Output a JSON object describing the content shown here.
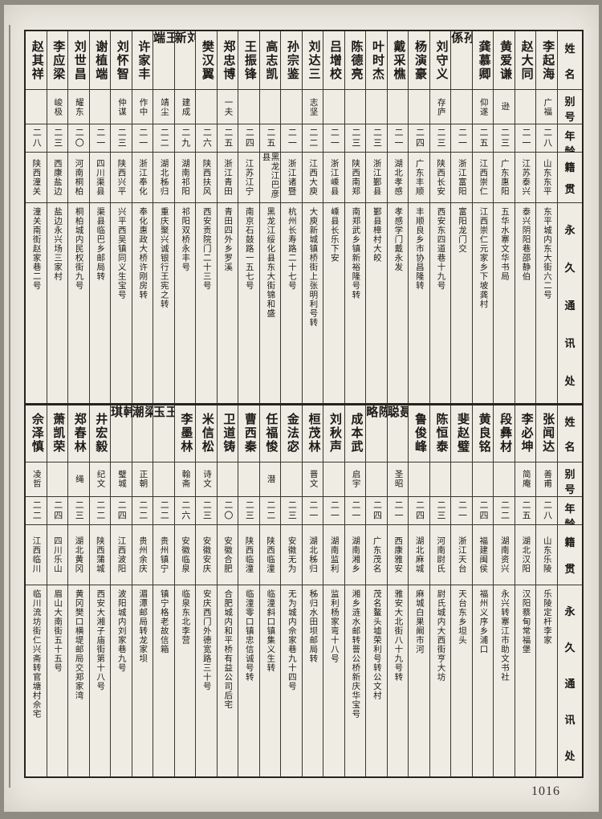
{
  "page": {
    "number": "1016"
  },
  "headers": {
    "name": "姓名",
    "alias": "别号",
    "age": "年龄",
    "native": "籍贯",
    "address": "永久通讯处"
  },
  "tables": [
    {
      "people": [
        {
          "name": "李起海",
          "alias": "广福",
          "age": "二八",
          "native": "山东东平",
          "address": "东平城内东大街六二号"
        },
        {
          "name": "赵大同",
          "alias": "",
          "age": "二一",
          "native": "江苏泰兴",
          "address": "泰兴阴阳巷邵静伯"
        },
        {
          "name": "黄爱谦",
          "alias": "逊",
          "age": "二三",
          "native": "广东惠阳",
          "address": "五华水寨文华书局"
        },
        {
          "name": "龚慕卿",
          "alias": "仰遂",
          "age": "二五",
          "native": "江西崇仁",
          "address": "江西崇仁元家乡下坡龚村"
        },
        {
          "name": "孙係",
          "alias": "",
          "age": "二一",
          "native": "浙江富阳",
          "address": "富阳龙门交"
        },
        {
          "name": "刘守义",
          "alias": "存庐",
          "age": "二三",
          "native": "陕西长安",
          "address": "西安东四道巷十九号"
        },
        {
          "name": "杨演豪",
          "alias": "",
          "age": "二四",
          "native": "广东丰顺",
          "address": "丰顺良乡市协昌隆转"
        },
        {
          "name": "戴采樵",
          "alias": "",
          "age": "二一",
          "native": "湖北孝感",
          "address": "孝感学门戴永发"
        },
        {
          "name": "叶时杰",
          "alias": "",
          "age": "二三",
          "native": "浙江鄞县",
          "address": "鄞县樟村大皎"
        },
        {
          "name": "陈德亮",
          "alias": "",
          "age": "二三",
          "native": "陕西南郑",
          "address": "南郑武乡镇新裕隆号转"
        },
        {
          "name": "吕增校",
          "alias": "",
          "age": "二一",
          "native": "浙江嵊县",
          "address": "嵊县长乐下安"
        },
        {
          "name": "刘达三",
          "alias": "志坚",
          "age": "二二",
          "native": "江西大庾",
          "address": "大庾新城镇桥街上张明利号转"
        },
        {
          "name": "孙宗鉴",
          "alias": "",
          "age": "二一",
          "native": "浙江诸暨",
          "address": "杭州长寿路二十七号"
        },
        {
          "name": "高志凯",
          "alias": "",
          "age": "二五",
          "native": "黑龙江巴彦县",
          "address": "黑龙江绥化县东大街锦和盛"
        },
        {
          "name": "王振锋",
          "alias": "",
          "age": "二四",
          "native": "江苏江宁",
          "address": "南京石鼓路一五七号"
        },
        {
          "name": "郑忠博",
          "alias": "一夫",
          "age": "二五",
          "native": "浙江青田",
          "address": "青田四外乡罗溪"
        },
        {
          "name": "樊汉翼",
          "alias": "",
          "age": "二六",
          "native": "陕西扶风",
          "address": "西安贡院门二十三号"
        },
        {
          "name": "刘新",
          "alias": "建成",
          "age": "二九",
          "native": "湖南祁阳",
          "address": "祁阳双桥永丰号"
        },
        {
          "name": "王端",
          "alias": "靖尘",
          "age": "二二",
          "native": "湖北秭归",
          "address": "重庆聚兴诚银行王宪之转"
        },
        {
          "name": "许家丰",
          "alias": "作中",
          "age": "二一",
          "native": "浙江奉化",
          "address": "奉化惠政大桥许刚房转"
        },
        {
          "name": "刘怀智",
          "alias": "仲谋",
          "age": "二三",
          "native": "陕西兴平",
          "address": "兴平西吴镇同义生宝号"
        },
        {
          "name": "谢植端",
          "alias": "",
          "age": "二一",
          "native": "四川渠县",
          "address": "渠县临巴乡邮局转"
        },
        {
          "name": "刘世昌",
          "alias": "耀东",
          "age": "二〇",
          "native": "河南桐柏",
          "address": "桐柏城内民权街九号"
        },
        {
          "name": "李应梁",
          "alias": "峻极",
          "age": "二三",
          "native": "西康盐边",
          "address": "盐边永兴场三家村"
        },
        {
          "name": "赵其祥",
          "alias": "",
          "age": "二八",
          "native": "陕西潼关",
          "address": "潼关南街赵家巷二号"
        }
      ]
    },
    {
      "people": [
        {
          "name": "张闻达",
          "alias": "善甫",
          "age": "二八",
          "native": "山东乐陵",
          "address": "乐陵定杆李家"
        },
        {
          "name": "李必坤",
          "alias": "简庵",
          "age": "二五",
          "native": "湖北汉阳",
          "address": "汉阳蔡甸常福堡"
        },
        {
          "name": "段彝材",
          "alias": "",
          "age": "二二",
          "native": "湖南资兴",
          "address": "永兴转寨江市助文书社"
        },
        {
          "name": "黄良铭",
          "alias": "",
          "age": "二四",
          "native": "福建闽侯",
          "address": "福州义序乡浦口"
        },
        {
          "name": "斐赵璧",
          "alias": "",
          "age": "二一",
          "native": "浙江天台",
          "address": "天台东乡坦头"
        },
        {
          "name": "陈恒泰",
          "alias": "",
          "age": "二三",
          "native": "河南尉氏",
          "address": "尉氏城内大西街亨大坊"
        },
        {
          "name": "鲁俊峰",
          "alias": "",
          "age": "二四",
          "native": "湖北麻城",
          "address": "麻城白果阚市河"
        },
        {
          "name": "聂聪",
          "alias": "圣昭",
          "age": "二一",
          "native": "西康雅安",
          "address": "雅安大北街八十九号转"
        },
        {
          "name": "陈略",
          "alias": "",
          "age": "二四",
          "native": "广东茂名",
          "address": "茂名鳌头墟荣利号转公文村"
        },
        {
          "name": "成本武",
          "alias": "启宇",
          "age": "二一",
          "native": "湖南湘乡",
          "address": "湘乡涟水邮转罾公桥新庆华宝号"
        },
        {
          "name": "刘秋声",
          "alias": "",
          "age": "二一",
          "native": "湖南监利",
          "address": "监利杨家弯十八号"
        },
        {
          "name": "桓茂林",
          "alias": "晋文",
          "age": "二一",
          "native": "湖北秭归",
          "address": "秭归水田坝邮局转"
        },
        {
          "name": "金法宓",
          "alias": "",
          "age": "二三",
          "native": "安徽无为",
          "address": "无为城内佘家巷九十四号"
        },
        {
          "name": "任福悛",
          "alias": "潜",
          "age": "二二",
          "native": "陕西临潼",
          "address": "临潼斜口镇集义生转"
        },
        {
          "name": "曹西秦",
          "alias": "",
          "age": "二三",
          "native": "陕西临潼",
          "address": "临潼零口镇忠信诚号转"
        },
        {
          "name": "卫道铸",
          "alias": "",
          "age": "二〇",
          "native": "安徽合肥",
          "address": "合肥城内和平桥有益公司后宅"
        },
        {
          "name": "米信松",
          "alias": "诗文",
          "age": "二三",
          "native": "安徽安庆",
          "address": "安庆西门外德宽路三十号"
        },
        {
          "name": "李墨林",
          "alias": "翰斋",
          "age": "二六",
          "native": "安徽临泉",
          "address": "临泉东北李营"
        },
        {
          "name": "王玉",
          "alias": "",
          "age": "二二",
          "native": "贵州镇宁",
          "address": "镇宁格老故信箱"
        },
        {
          "name": "梁潮",
          "alias": "正朝",
          "age": "二二",
          "native": "贵州余庆",
          "address": "湄潭邮局转龙家坝"
        },
        {
          "name": "韩琪",
          "alias": "璧城",
          "age": "二四",
          "native": "江西波阳",
          "address": "波阳城内刘家巷九号"
        },
        {
          "name": "井宏毅",
          "alias": "纪文",
          "age": "二二",
          "native": "陕西蒲城",
          "address": "西安大湘子庙街第十八号"
        },
        {
          "name": "郑春林",
          "alias": "绳",
          "age": "二三",
          "native": "湖北黄冈",
          "address": "黄冈樊口横堤邮局交郑家湾"
        },
        {
          "name": "萧凯荣",
          "alias": "",
          "age": "二四",
          "native": "四川乐山",
          "address": "眉山大南街五十五号"
        },
        {
          "name": "佘泽慎",
          "alias": "凌哲",
          "age": "二二",
          "native": "江西临川",
          "address": "临川流坊街仁兴斋转官塘村佘宅"
        }
      ]
    }
  ]
}
